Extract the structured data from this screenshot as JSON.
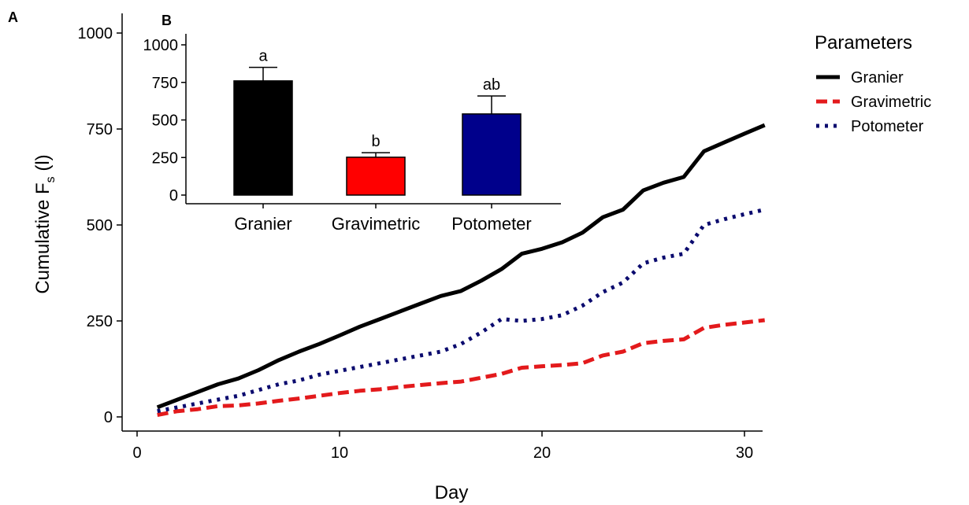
{
  "chart_data": [
    {
      "panel": "A",
      "type": "line",
      "xlabel": "Day",
      "ylabel_main": "Cumulative F",
      "ylabel_sub": "s",
      "ylabel_unit": " (l)",
      "xlim": [
        0,
        32
      ],
      "ylim": [
        0,
        1000
      ],
      "xticks": [
        0,
        10,
        20,
        30
      ],
      "yticks": [
        0,
        250,
        500,
        750,
        1000
      ],
      "grid": false,
      "legend": {
        "title": "Parameters",
        "position": "right"
      },
      "series": [
        {
          "name": "Granier",
          "color": "#000000",
          "style": "solid",
          "x": [
            1,
            2,
            3,
            4,
            5,
            6,
            7,
            8,
            9,
            10,
            11,
            12,
            13,
            14,
            15,
            16,
            17,
            18,
            19,
            20,
            21,
            22,
            23,
            24,
            25,
            26,
            27,
            28,
            29,
            30,
            31
          ],
          "y": [
            25,
            45,
            65,
            85,
            100,
            122,
            148,
            170,
            190,
            212,
            235,
            255,
            275,
            295,
            315,
            328,
            355,
            385,
            425,
            438,
            455,
            480,
            520,
            540,
            590,
            610,
            625,
            692,
            715,
            738,
            760
          ]
        },
        {
          "name": "Gravimetric",
          "color": "#e31a1c",
          "style": "dashed",
          "x": [
            1,
            2,
            3,
            4,
            5,
            6,
            7,
            8,
            9,
            10,
            11,
            12,
            13,
            14,
            15,
            16,
            17,
            18,
            19,
            20,
            21,
            22,
            23,
            24,
            25,
            26,
            27,
            28,
            29,
            30,
            31
          ],
          "y": [
            5,
            15,
            20,
            28,
            30,
            35,
            42,
            48,
            55,
            62,
            68,
            72,
            78,
            83,
            88,
            92,
            102,
            112,
            128,
            132,
            135,
            140,
            160,
            170,
            192,
            198,
            202,
            232,
            240,
            246,
            252
          ]
        },
        {
          "name": "Potometer",
          "color": "#0a0a6e",
          "style": "dotted",
          "x": [
            1,
            2,
            3,
            4,
            5,
            6,
            7,
            8,
            9,
            10,
            11,
            12,
            13,
            14,
            15,
            16,
            17,
            18,
            19,
            20,
            21,
            22,
            23,
            24,
            25,
            26,
            27,
            28,
            29,
            30,
            31
          ],
          "y": [
            15,
            25,
            35,
            45,
            55,
            70,
            85,
            95,
            110,
            120,
            130,
            140,
            150,
            160,
            170,
            190,
            220,
            255,
            250,
            255,
            265,
            290,
            325,
            350,
            400,
            415,
            425,
            500,
            515,
            528,
            540
          ]
        }
      ]
    },
    {
      "panel": "B",
      "type": "bar",
      "categories": [
        "Granier",
        "Gravimetric",
        "Potometer"
      ],
      "values": [
        760,
        252,
        540
      ],
      "errors": [
        90,
        30,
        120
      ],
      "colors": [
        "#000000",
        "#ff0000",
        "#00008b"
      ],
      "letters": [
        "a",
        "b",
        "ab"
      ],
      "ylim": [
        0,
        1000
      ],
      "yticks": [
        0,
        250,
        500,
        750,
        1000
      ],
      "grid": false
    }
  ]
}
